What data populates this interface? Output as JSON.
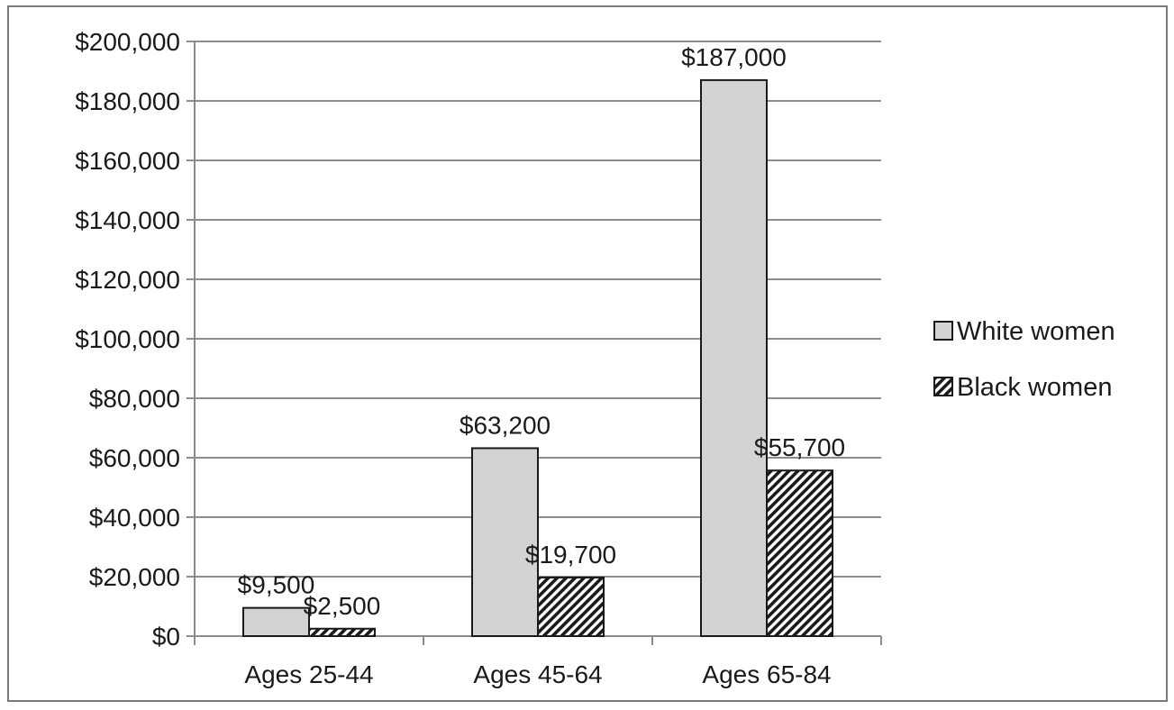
{
  "chart_data": {
    "type": "bar",
    "title": "",
    "xlabel": "",
    "ylabel": "",
    "categories": [
      "Ages 25-44",
      "Ages 45-64",
      "Ages 65-84"
    ],
    "ylim": [
      0,
      200000
    ],
    "ytick_step": 20000,
    "ytick_labels": [
      "$0",
      "$20,000",
      "$40,000",
      "$60,000",
      "$80,000",
      "$100,000",
      "$120,000",
      "$140,000",
      "$160,000",
      "$180,000",
      "$200,000"
    ],
    "grid": true,
    "legend_position": "right",
    "series": [
      {
        "name": "White women",
        "values": [
          9500,
          63200,
          187000
        ],
        "labels": [
          "$9,500",
          "$63,200",
          "$187,000"
        ],
        "color": "#d3d3d3",
        "pattern": "solid"
      },
      {
        "name": "Black women",
        "values": [
          2500,
          19700,
          55700
        ],
        "labels": [
          "$2,500",
          "$19,700",
          "$55,700"
        ],
        "color": "#1a1a1a",
        "pattern": "diagonal-hatch"
      }
    ]
  }
}
